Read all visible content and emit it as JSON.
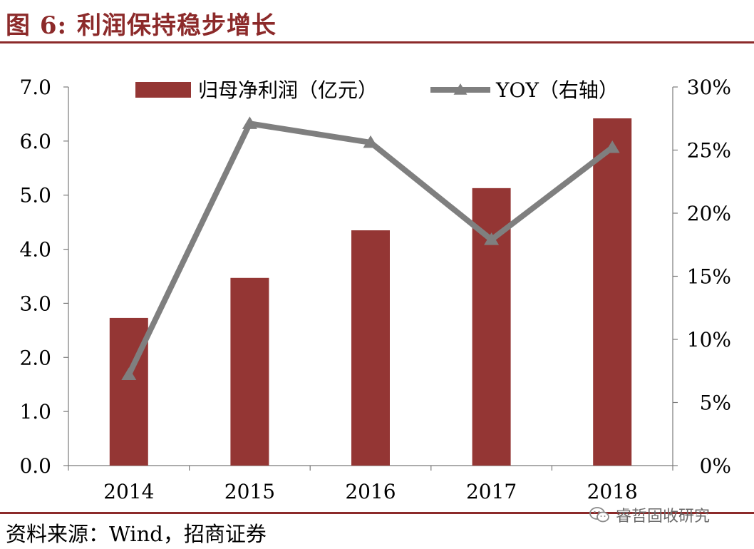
{
  "figure": {
    "label": "图 6:",
    "title": "利润保持稳步增长"
  },
  "source_text": "资料来源：Wind，招商证券",
  "watermark_text": "睿哲固收研究",
  "colors": {
    "bar": "#943634",
    "line": "#7f7f7f",
    "rule": "#8c2a2a"
  },
  "chart_data": {
    "type": "bar",
    "categories": [
      "2014",
      "2015",
      "2016",
      "2017",
      "2018"
    ],
    "series": [
      {
        "name": "归母净利润（亿元）",
        "type": "bar",
        "axis": "left",
        "values": [
          2.73,
          3.47,
          4.35,
          5.13,
          6.42
        ]
      },
      {
        "name": "YOY（右轴）",
        "type": "line",
        "axis": "right",
        "marker": "triangle",
        "values": [
          7.2,
          27.1,
          25.6,
          17.9,
          25.2
        ]
      }
    ],
    "y_left": {
      "min": 0,
      "max": 7,
      "ticks": [
        "0.0",
        "1.0",
        "2.0",
        "3.0",
        "4.0",
        "5.0",
        "6.0",
        "7.0"
      ]
    },
    "y_right": {
      "min": 0,
      "max": 30,
      "unit": "%",
      "ticks": [
        "0%",
        "5%",
        "10%",
        "15%",
        "20%",
        "25%",
        "30%"
      ]
    },
    "legend_position": "top",
    "grid": false
  }
}
